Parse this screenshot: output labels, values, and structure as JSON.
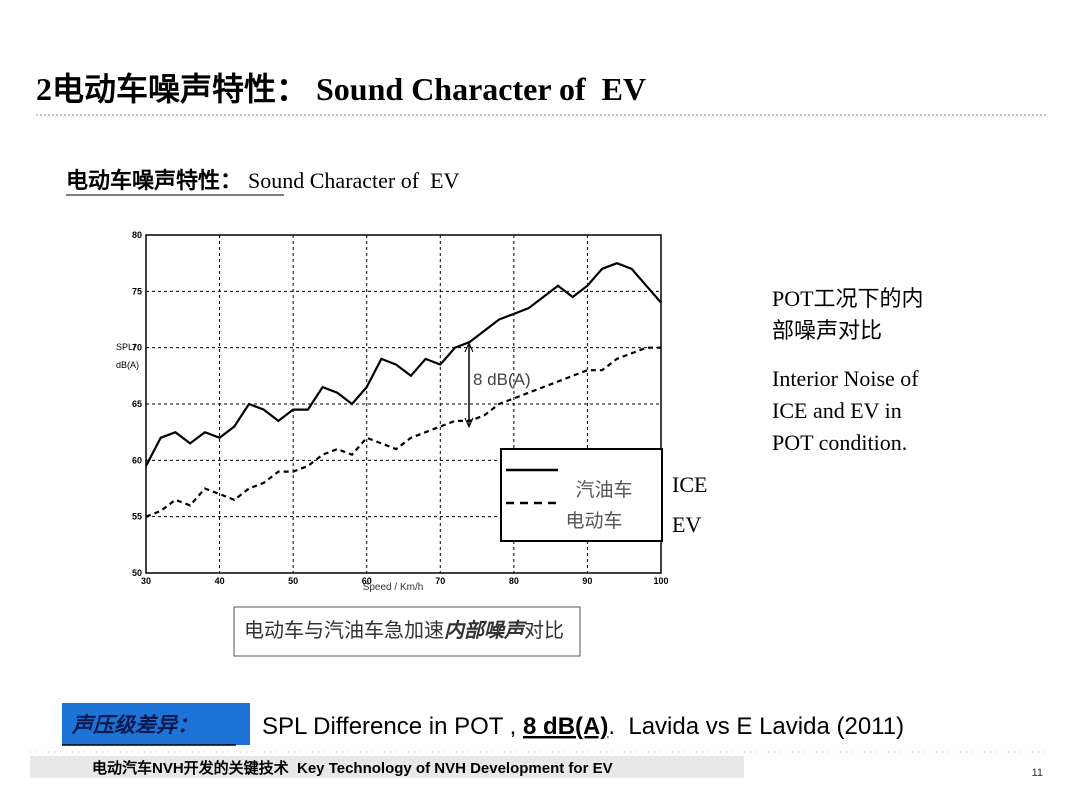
{
  "slide": {
    "title": "2电动车噪声特性： Sound Character of  EV",
    "subtitle_cn": "电动车噪声特性：",
    "subtitle_en": "Sound Character of  EV",
    "note_cn": [
      "POT工况下的内",
      "部噪声对比"
    ],
    "note_en": [
      "Interior Noise of",
      "ICE and EV in",
      "POT condition."
    ],
    "caption": [
      "电动车与汽油车急加速",
      "内部噪声",
      "对比"
    ],
    "summary_label": "声压级差异：",
    "summary": [
      "SPL Difference in POT , ",
      "8 dB(A)",
      ".  Lavida vs E Lavida (2011)"
    ],
    "footer": "电动汽车NVH开发的关键技术  Key Technology of NVH Development for EV",
    "page_number": "11"
  },
  "chart_data": {
    "type": "line",
    "x_label": "Speed / Km/h",
    "y_label": [
      "SPL/",
      "dB(A)"
    ],
    "annotation": "8 dB(A)",
    "side_labels": [
      "ICE",
      "EV"
    ],
    "x": [
      30,
      32,
      34,
      36,
      38,
      40,
      42,
      44,
      46,
      48,
      50,
      52,
      54,
      56,
      58,
      60,
      62,
      64,
      66,
      68,
      70,
      72,
      74,
      76,
      78,
      80,
      82,
      84,
      86,
      88,
      90,
      92,
      94,
      96,
      98,
      100
    ],
    "series": [
      {
        "name": "汽油车",
        "color": "#000000",
        "dashed": false,
        "values": [
          59.5,
          62,
          62.5,
          61.5,
          62.5,
          62,
          63,
          65,
          64.5,
          63.5,
          64.5,
          64.5,
          66.5,
          66,
          65,
          66.5,
          69,
          68.5,
          67.5,
          69,
          68.5,
          70,
          70.5,
          71.5,
          72.5,
          73,
          73.5,
          74.5,
          75.5,
          74.5,
          75.5,
          77,
          77.5,
          77,
          75.5,
          74
        ]
      },
      {
        "name": "电动车",
        "color": "#000000",
        "dashed": true,
        "values": [
          55,
          55.5,
          56.5,
          56,
          57.5,
          57,
          56.5,
          57.5,
          58,
          59,
          59,
          59.5,
          60.5,
          61,
          60.5,
          62,
          61.5,
          61,
          62,
          62.5,
          63,
          63.5,
          63.5,
          64,
          65,
          65.5,
          66,
          66.5,
          67,
          67.5,
          68,
          68,
          69,
          69.5,
          70,
          70
        ]
      }
    ],
    "xlim": [
      30,
      100
    ],
    "ylim": [
      50,
      80
    ],
    "xticks": [
      30,
      40,
      50,
      60,
      70,
      80,
      90,
      100
    ],
    "yticks": [
      50,
      55,
      60,
      65,
      70,
      75,
      80
    ],
    "grid": true
  }
}
